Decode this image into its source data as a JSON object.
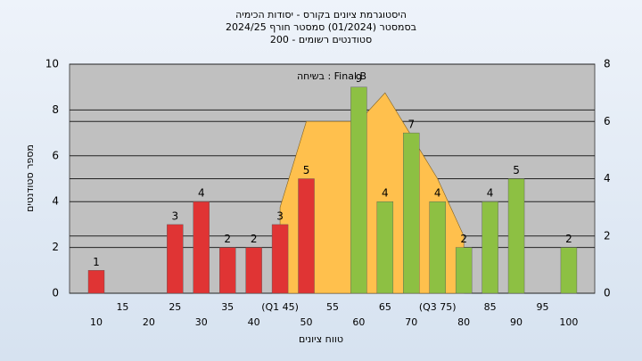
{
  "chart_data": {
    "type": "bar",
    "title": "היסטוגרמת ציונים בקורס - יסודות הכימיה",
    "subtitle": [
      "בסמסטר  (01/2024)  סמסטר חורף 2024/25",
      "סטודנטים רשומים - 200"
    ],
    "annotation": "בשיחה : Final B",
    "x_label": "טווח ציונים",
    "y_label": "מספר סטודנטים",
    "categories": [
      "10",
      "15",
      "20",
      "25",
      "30",
      "35",
      "40",
      "(Q1 45)",
      "50",
      "55",
      "60",
      "65",
      "70",
      "(Q3 75)",
      "80",
      "85",
      "90",
      "95",
      "100"
    ],
    "values": [
      1,
      0,
      0,
      3,
      4,
      2,
      2,
      3,
      5,
      0,
      9,
      4,
      7,
      4,
      2,
      4,
      5,
      0,
      2
    ],
    "colors": [
      "#e03434",
      "#e03434",
      "#e03434",
      "#e03434",
      "#e03434",
      "#e03434",
      "#e03434",
      "#e03434",
      "#e03434",
      "#e03434",
      "#8dc043",
      "#8dc043",
      "#8dc043",
      "#8dc043",
      "#8dc043",
      "#8dc043",
      "#8dc043",
      "#8dc043",
      "#8dc043"
    ],
    "area": {
      "axis": "y2",
      "color": "#ffc04d",
      "values": [
        null,
        null,
        null,
        null,
        null,
        null,
        null,
        3,
        6,
        6,
        6,
        7,
        5.5,
        4,
        2,
        null,
        null,
        null,
        null
      ]
    },
    "ylim": [
      0,
      10
    ],
    "yticks": [
      0,
      2,
      4,
      6,
      8,
      10
    ],
    "y2lim": [
      0,
      8
    ],
    "y2ticks": [
      0,
      2,
      4,
      6,
      8
    ],
    "grid": true
  }
}
